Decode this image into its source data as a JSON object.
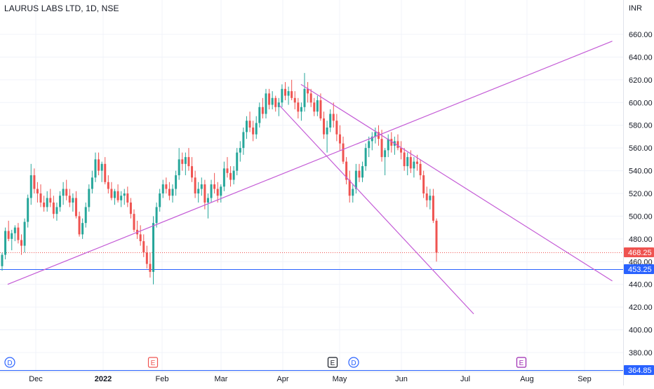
{
  "header": {
    "title": "LAURUS LABS LTD, 1D, NSE"
  },
  "colors": {
    "up": "#26a69a",
    "down": "#ef5350",
    "trendline": "#c45bd6",
    "support": "#2962ff",
    "grid": "#f0f3fa",
    "axis_text": "#131722"
  },
  "chart_data": {
    "type": "candlestick",
    "title": "LAURUS LABS LTD, 1D, NSE",
    "currency": "INR",
    "ylim": [
      360,
      675
    ],
    "y_ticks": [
      "660.00",
      "640.00",
      "620.00",
      "600.00",
      "580.00",
      "560.00",
      "540.00",
      "520.00",
      "500.00",
      "480.00",
      "460.00",
      "440.00",
      "420.00",
      "400.00",
      "380.00"
    ],
    "x_ticks": [
      "Dec",
      "2022",
      "Feb",
      "Mar",
      "Apr",
      "May",
      "Jun",
      "Jul",
      "Aug",
      "Sep"
    ],
    "x_ticks_bold": [
      "2022"
    ],
    "price_labels": [
      {
        "text": "468.25",
        "value": 468.25,
        "color": "#ef5350"
      },
      {
        "text": "453.25",
        "value": 453.25,
        "color": "#2962ff"
      },
      {
        "text": "364.85",
        "value": 364.85,
        "color": "#2962ff"
      }
    ],
    "horizontal_lines": [
      {
        "value": 453.25,
        "color": "#2962ff"
      },
      {
        "value": 364.85,
        "color": "#2962ff"
      }
    ],
    "last_price_line": {
      "value": 468.25,
      "color": "#ef5350"
    },
    "trendlines": [
      {
        "from": [
          "2021-11-17",
          440
        ],
        "to": [
          "2022-09-14",
          654
        ],
        "color": "#c45bd6"
      },
      {
        "from": [
          "2022-04-12",
          616
        ],
        "to": [
          "2022-09-14",
          443
        ],
        "color": "#c45bd6"
      },
      {
        "from": [
          "2022-04-01",
          598
        ],
        "to": [
          "2022-07-07",
          414
        ],
        "color": "#c45bd6"
      }
    ],
    "events": [
      {
        "label": "D",
        "kind": "dividend",
        "date": "2021-11-19",
        "color": "#2962ff"
      },
      {
        "label": "E",
        "kind": "earnings",
        "date": "2022-01-29",
        "color": "#ef5350"
      },
      {
        "label": "E",
        "kind": "earnings",
        "date": "2022-04-29",
        "color": "#131722"
      },
      {
        "label": "D",
        "kind": "dividend",
        "date": "2022-05-04",
        "color": "#2962ff"
      },
      {
        "label": "E",
        "kind": "earnings",
        "date": "2022-07-29",
        "color": "#9c27b0"
      }
    ],
    "candles": [
      [
        456,
        468,
        452,
        466
      ],
      [
        466,
        490,
        462,
        487
      ],
      [
        487,
        496,
        478,
        480
      ],
      [
        480,
        488,
        470,
        485
      ],
      [
        485,
        492,
        478,
        490
      ],
      [
        490,
        494,
        476,
        479
      ],
      [
        479,
        484,
        466,
        474
      ],
      [
        474,
        498,
        468,
        495
      ],
      [
        495,
        519,
        490,
        516
      ],
      [
        516,
        546,
        510,
        536
      ],
      [
        536,
        542,
        520,
        524
      ],
      [
        524,
        530,
        512,
        520
      ],
      [
        520,
        528,
        508,
        512
      ],
      [
        512,
        518,
        504,
        508
      ],
      [
        508,
        522,
        504,
        516
      ],
      [
        516,
        524,
        508,
        512
      ],
      [
        512,
        518,
        498,
        502
      ],
      [
        502,
        512,
        496,
        508
      ],
      [
        508,
        522,
        504,
        518
      ],
      [
        518,
        530,
        510,
        524
      ],
      [
        524,
        532,
        514,
        518
      ],
      [
        518,
        524,
        508,
        512
      ],
      [
        512,
        520,
        504,
        516
      ],
      [
        516,
        522,
        498,
        500
      ],
      [
        500,
        504,
        482,
        484
      ],
      [
        484,
        498,
        480,
        494
      ],
      [
        494,
        512,
        490,
        508
      ],
      [
        508,
        528,
        504,
        524
      ],
      [
        524,
        540,
        520,
        534
      ],
      [
        534,
        556,
        530,
        550
      ],
      [
        550,
        556,
        536,
        540
      ],
      [
        540,
        548,
        530,
        546
      ],
      [
        546,
        552,
        528,
        530
      ],
      [
        530,
        536,
        520,
        524
      ],
      [
        524,
        530,
        514,
        516
      ],
      [
        516,
        524,
        510,
        522
      ],
      [
        522,
        528,
        512,
        514
      ],
      [
        514,
        522,
        508,
        518
      ],
      [
        518,
        524,
        510,
        520
      ],
      [
        520,
        526,
        508,
        512
      ],
      [
        512,
        516,
        498,
        502
      ],
      [
        502,
        506,
        486,
        488
      ],
      [
        488,
        496,
        480,
        484
      ],
      [
        484,
        492,
        474,
        478
      ],
      [
        478,
        484,
        464,
        468
      ],
      [
        468,
        474,
        454,
        458
      ],
      [
        458,
        468,
        446,
        451
      ],
      [
        451,
        500,
        440,
        494
      ],
      [
        494,
        512,
        490,
        508
      ],
      [
        508,
        524,
        504,
        520
      ],
      [
        520,
        532,
        516,
        528
      ],
      [
        528,
        534,
        520,
        524
      ],
      [
        524,
        530,
        514,
        518
      ],
      [
        518,
        528,
        512,
        524
      ],
      [
        524,
        540,
        518,
        536
      ],
      [
        536,
        560,
        532,
        550
      ],
      [
        550,
        556,
        540,
        546
      ],
      [
        546,
        556,
        536,
        552
      ],
      [
        552,
        560,
        540,
        544
      ],
      [
        544,
        552,
        530,
        534
      ],
      [
        534,
        540,
        516,
        520
      ],
      [
        520,
        530,
        512,
        524
      ],
      [
        524,
        534,
        518,
        528
      ],
      [
        528,
        532,
        506,
        512
      ],
      [
        512,
        520,
        498,
        516
      ],
      [
        516,
        532,
        512,
        528
      ],
      [
        528,
        538,
        520,
        524
      ],
      [
        524,
        530,
        512,
        518
      ],
      [
        518,
        528,
        512,
        526
      ],
      [
        526,
        548,
        522,
        542
      ],
      [
        542,
        552,
        534,
        538
      ],
      [
        538,
        544,
        526,
        532
      ],
      [
        532,
        544,
        528,
        540
      ],
      [
        540,
        560,
        536,
        556
      ],
      [
        556,
        566,
        548,
        560
      ],
      [
        560,
        578,
        554,
        574
      ],
      [
        574,
        588,
        568,
        584
      ],
      [
        584,
        592,
        574,
        578
      ],
      [
        578,
        584,
        566,
        572
      ],
      [
        572,
        588,
        568,
        582
      ],
      [
        582,
        600,
        578,
        596
      ],
      [
        596,
        604,
        586,
        590
      ],
      [
        590,
        612,
        586,
        608
      ],
      [
        608,
        612,
        594,
        598
      ],
      [
        598,
        610,
        594,
        604
      ],
      [
        604,
        606,
        592,
        596
      ],
      [
        596,
        604,
        588,
        600
      ],
      [
        600,
        616,
        596,
        612
      ],
      [
        612,
        618,
        602,
        606
      ],
      [
        606,
        614,
        598,
        610
      ],
      [
        610,
        620,
        602,
        604
      ],
      [
        604,
        610,
        594,
        600
      ],
      [
        600,
        604,
        586,
        592
      ],
      [
        592,
        600,
        584,
        596
      ],
      [
        596,
        626,
        592,
        612
      ],
      [
        612,
        618,
        600,
        608
      ],
      [
        608,
        612,
        596,
        600
      ],
      [
        600,
        604,
        588,
        592
      ],
      [
        592,
        606,
        588,
        602
      ],
      [
        602,
        608,
        584,
        586
      ],
      [
        586,
        592,
        568,
        572
      ],
      [
        572,
        584,
        556,
        578
      ],
      [
        578,
        594,
        574,
        590
      ],
      [
        590,
        600,
        578,
        584
      ],
      [
        584,
        590,
        566,
        572
      ],
      [
        572,
        580,
        558,
        564
      ],
      [
        564,
        570,
        546,
        548
      ],
      [
        548,
        552,
        528,
        532
      ],
      [
        532,
        540,
        512,
        518
      ],
      [
        518,
        528,
        512,
        524
      ],
      [
        524,
        546,
        520,
        540
      ],
      [
        540,
        546,
        530,
        534
      ],
      [
        534,
        548,
        530,
        544
      ],
      [
        544,
        564,
        540,
        560
      ],
      [
        560,
        570,
        552,
        566
      ],
      [
        566,
        574,
        558,
        570
      ],
      [
        570,
        578,
        564,
        574
      ],
      [
        574,
        580,
        562,
        568
      ],
      [
        568,
        576,
        548,
        552
      ],
      [
        552,
        560,
        536,
        558
      ],
      [
        558,
        572,
        552,
        568
      ],
      [
        568,
        574,
        556,
        562
      ],
      [
        562,
        570,
        554,
        566
      ],
      [
        566,
        572,
        558,
        560
      ],
      [
        560,
        566,
        550,
        556
      ],
      [
        556,
        560,
        540,
        544
      ],
      [
        544,
        556,
        536,
        552
      ],
      [
        552,
        558,
        538,
        542
      ],
      [
        542,
        552,
        534,
        548
      ],
      [
        548,
        554,
        540,
        546
      ],
      [
        546,
        550,
        532,
        536
      ],
      [
        536,
        540,
        516,
        520
      ],
      [
        520,
        526,
        508,
        514
      ],
      [
        514,
        524,
        506,
        518
      ],
      [
        518,
        524,
        494,
        496
      ],
      [
        496,
        498,
        460,
        468
      ]
    ]
  }
}
